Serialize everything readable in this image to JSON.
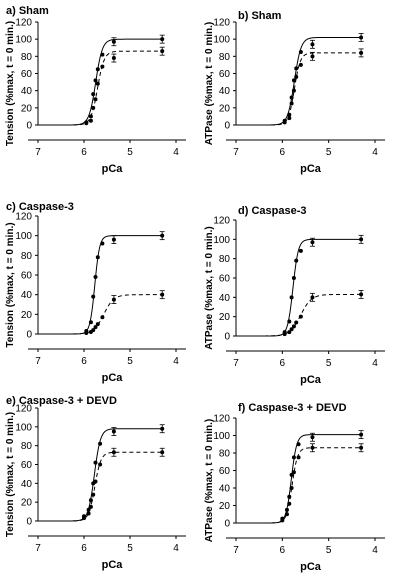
{
  "chart_data": [
    {
      "type": "scatter",
      "title": "a) Sham",
      "xlabel": "pCa",
      "ylabel": "Tension (%max, t = 0 min.)",
      "xlim": [
        7,
        4
      ],
      "ylim": [
        0,
        120
      ],
      "xticks": [
        7,
        6,
        5,
        4
      ],
      "yticks": [
        0,
        20,
        40,
        60,
        80,
        100,
        120
      ],
      "grid": false,
      "series": [
        {
          "style": "solid",
          "x": [
            5.95,
            5.85,
            5.8,
            5.75,
            5.7,
            5.6,
            5.35,
            4.3
          ],
          "y": [
            3,
            10,
            36,
            52,
            65,
            82,
            97,
            100
          ]
        },
        {
          "style": "dashed",
          "x": [
            5.95,
            5.85,
            5.8,
            5.75,
            5.7,
            5.6,
            5.35,
            4.3
          ],
          "y": [
            2,
            5,
            20,
            30,
            48,
            68,
            78,
            86
          ]
        }
      ]
    },
    {
      "type": "scatter",
      "title": "b) Sham",
      "xlabel": "pCa",
      "ylabel": "ATPase (%max, t = 0 min.)",
      "xlim": [
        7,
        4
      ],
      "ylim": [
        0,
        120
      ],
      "xticks": [
        7,
        6,
        5,
        4
      ],
      "yticks": [
        0,
        20,
        40,
        60,
        80,
        100,
        120
      ],
      "grid": false,
      "series": [
        {
          "style": "solid",
          "x": [
            5.95,
            5.85,
            5.8,
            5.75,
            5.7,
            5.6,
            5.35,
            4.3
          ],
          "y": [
            5,
            12,
            32,
            52,
            66,
            85,
            94,
            102
          ]
        },
        {
          "style": "dashed",
          "x": [
            5.95,
            5.85,
            5.8,
            5.75,
            5.7,
            5.6,
            5.35,
            4.3
          ],
          "y": [
            3,
            8,
            25,
            40,
            56,
            70,
            80,
            84
          ]
        }
      ]
    },
    {
      "type": "scatter",
      "title": "c) Caspase-3",
      "xlabel": "pCa",
      "ylabel": "Tension (%max, t = 0 min.)",
      "xlim": [
        7,
        4
      ],
      "ylim": [
        0,
        120
      ],
      "xticks": [
        7,
        6,
        5,
        4
      ],
      "yticks": [
        0,
        20,
        40,
        60,
        80,
        100,
        120
      ],
      "grid": false,
      "series": [
        {
          "style": "solid",
          "x": [
            5.95,
            5.85,
            5.8,
            5.75,
            5.7,
            5.6,
            5.35,
            4.3
          ],
          "y": [
            3,
            12,
            38,
            58,
            78,
            92,
            96,
            100
          ]
        },
        {
          "style": "dashed",
          "x": [
            5.95,
            5.85,
            5.8,
            5.75,
            5.7,
            5.6,
            5.35,
            4.3
          ],
          "y": [
            1,
            2,
            4,
            7,
            10,
            17,
            35,
            40
          ]
        }
      ]
    },
    {
      "type": "scatter",
      "title": "d) Caspase-3",
      "xlabel": "pCa",
      "ylabel": "ATPase (%max, t = 0 min.)",
      "xlim": [
        7,
        4
      ],
      "ylim": [
        0,
        120
      ],
      "xticks": [
        7,
        6,
        5,
        4
      ],
      "yticks": [
        0,
        20,
        40,
        60,
        80,
        100,
        120
      ],
      "grid": false,
      "series": [
        {
          "style": "solid",
          "x": [
            5.95,
            5.85,
            5.8,
            5.75,
            5.7,
            5.6,
            5.35,
            4.3
          ],
          "y": [
            4,
            15,
            40,
            60,
            78,
            88,
            97,
            100
          ]
        },
        {
          "style": "dashed",
          "x": [
            5.95,
            5.85,
            5.8,
            5.75,
            5.7,
            5.6,
            5.35,
            4.3
          ],
          "y": [
            2,
            4,
            7,
            10,
            14,
            20,
            40,
            43
          ]
        }
      ]
    },
    {
      "type": "scatter",
      "title": "e) Caspase-3 + DEVD",
      "xlabel": "pCa",
      "ylabel": "Tension (%max, t = 0 min.)",
      "xlim": [
        7,
        4
      ],
      "ylim": [
        0,
        120
      ],
      "xticks": [
        7,
        6,
        5,
        4
      ],
      "yticks": [
        0,
        20,
        40,
        60,
        80,
        100,
        120
      ],
      "grid": false,
      "series": [
        {
          "style": "solid",
          "x": [
            6.0,
            5.9,
            5.85,
            5.8,
            5.75,
            5.65,
            5.35,
            4.3
          ],
          "y": [
            5,
            12,
            22,
            40,
            62,
            82,
            95,
            98
          ]
        },
        {
          "style": "dashed",
          "x": [
            6.0,
            5.9,
            5.85,
            5.8,
            5.75,
            5.65,
            5.35,
            4.3
          ],
          "y": [
            3,
            8,
            15,
            28,
            42,
            60,
            73,
            73
          ]
        }
      ]
    },
    {
      "type": "scatter",
      "title": "f) Caspase-3 + DEVD",
      "xlabel": "pCa",
      "ylabel": "ATPase (%max, t = 0 min.)",
      "xlim": [
        7,
        4
      ],
      "ylim": [
        0,
        120
      ],
      "xticks": [
        7,
        6,
        5,
        4
      ],
      "yticks": [
        0,
        20,
        40,
        60,
        80,
        100,
        120
      ],
      "grid": false,
      "series": [
        {
          "style": "solid",
          "x": [
            6.0,
            5.9,
            5.85,
            5.8,
            5.75,
            5.65,
            5.35,
            4.3
          ],
          "y": [
            5,
            15,
            30,
            55,
            75,
            90,
            98,
            101
          ]
        },
        {
          "style": "dashed",
          "x": [
            6.0,
            5.9,
            5.85,
            5.8,
            5.75,
            5.65,
            5.35,
            4.3
          ],
          "y": [
            3,
            10,
            22,
            40,
            58,
            75,
            86,
            86
          ]
        }
      ]
    }
  ]
}
